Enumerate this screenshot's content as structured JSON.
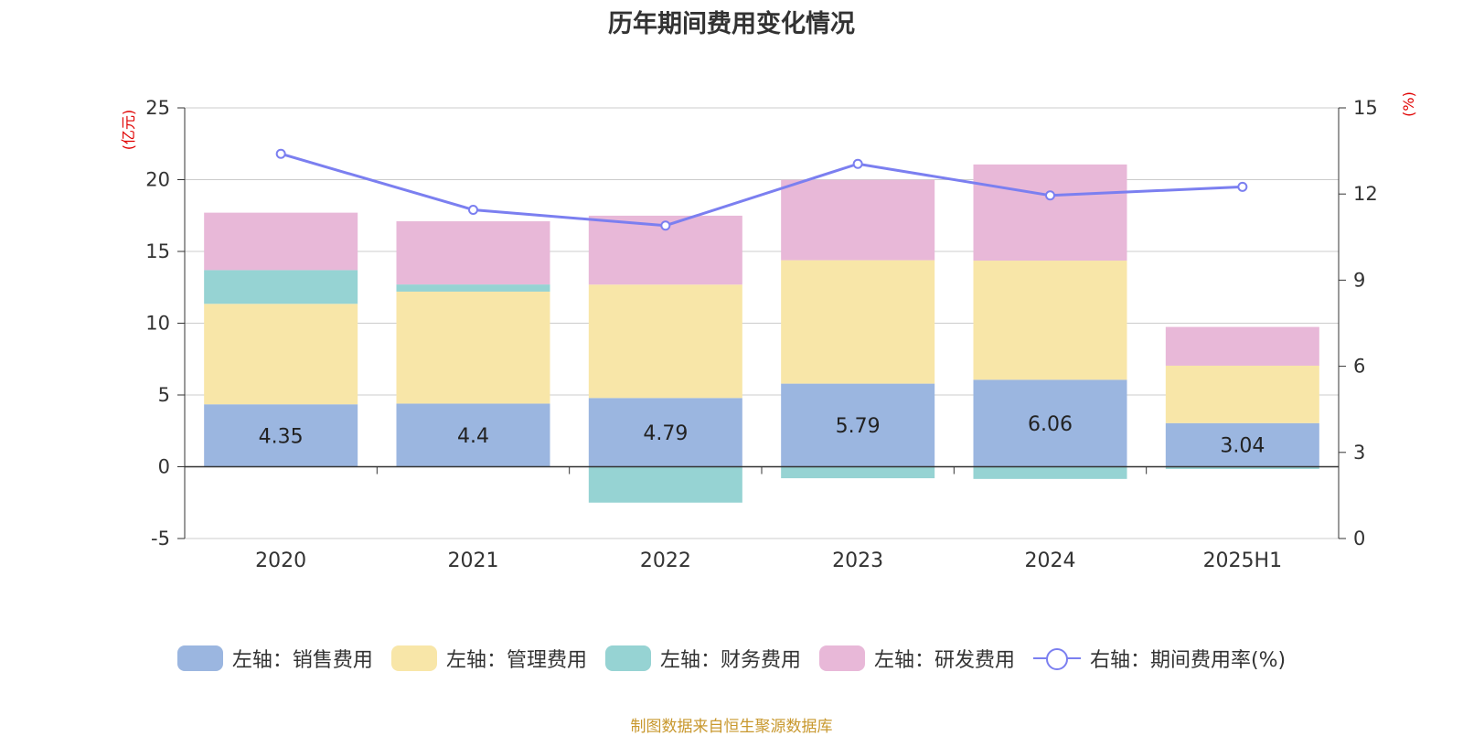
{
  "chart_data": {
    "type": "bar",
    "stacked": true,
    "title": "历年期间费用变化情况",
    "categories": [
      "2020",
      "2021",
      "2022",
      "2023",
      "2024",
      "2025H1"
    ],
    "y_left": {
      "label": "(亿元)",
      "ylim": [
        -5,
        25
      ],
      "ticks": [
        -5,
        0,
        5,
        10,
        15,
        20,
        25
      ]
    },
    "y_right": {
      "label": "(%)",
      "ylim": [
        0,
        15
      ],
      "ticks": [
        0,
        3,
        6,
        9,
        12,
        15
      ]
    },
    "series": [
      {
        "name": "左轴：销售费用",
        "axis": "left",
        "type": "bar",
        "color": "#9bb6e0",
        "values": [
          4.35,
          4.4,
          4.79,
          5.79,
          6.06,
          3.04
        ],
        "labels": [
          "4.35",
          "4.4",
          "4.79",
          "5.79",
          "6.06",
          "3.04"
        ]
      },
      {
        "name": "左轴：管理费用",
        "axis": "left",
        "type": "bar",
        "color": "#f8e6a8",
        "values": [
          7.0,
          7.8,
          7.9,
          8.6,
          8.3,
          4.0
        ]
      },
      {
        "name": "左轴：财务费用",
        "axis": "left",
        "type": "bar",
        "color": "#96d3d3",
        "values": [
          2.35,
          0.5,
          -2.5,
          -0.8,
          -0.85,
          -0.15
        ]
      },
      {
        "name": "左轴：研发费用",
        "axis": "left",
        "type": "bar",
        "color": "#e8b8d8",
        "values": [
          4.0,
          4.4,
          4.8,
          5.6,
          6.7,
          2.7
        ]
      },
      {
        "name": "右轴：期间费用率(%)",
        "axis": "right",
        "type": "line",
        "color": "#7b7ff0",
        "values": [
          13.4,
          11.45,
          10.9,
          13.05,
          11.95,
          12.25
        ]
      }
    ],
    "grid": true,
    "legend_position": "bottom"
  },
  "source": "制图数据来自恒生聚源数据库"
}
